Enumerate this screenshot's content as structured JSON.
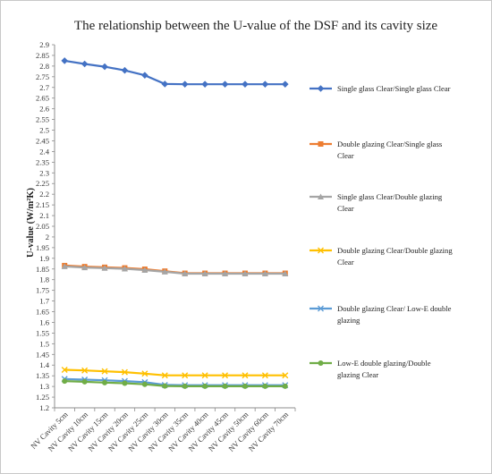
{
  "chart_data": {
    "type": "line",
    "title": "The relationship between the U-value of the DSF and its cavity size",
    "xlabel": "",
    "ylabel": "U-value (W/m²K)",
    "ylim": [
      1.2,
      2.9
    ],
    "ytick_step": 0.05,
    "grid": false,
    "legend_position": "right",
    "categories": [
      "NV Cavity 5cm",
      "NV Cavity 10cm",
      "NV Cavity 15cm",
      "NV Cavity 20cm",
      "NV Cavity 25cm",
      "NV Cavity 30cm",
      "NV Cavity 35cm",
      "NV Cavity 40cm",
      "NV Cavity 45cm",
      "NV Cavity 50cm",
      "NV Cavity 60cm",
      "NV Cavity 70cm"
    ],
    "series": [
      {
        "name": "Single glass Clear/Single glass Clear",
        "legend_lines": [
          "Single glass Clear/Single glass Clear"
        ],
        "color": "#4472C4",
        "marker": "diamond",
        "values": [
          2.825,
          2.81,
          2.797,
          2.78,
          2.757,
          2.716,
          2.715,
          2.715,
          2.715,
          2.715,
          2.715,
          2.715
        ]
      },
      {
        "name": "Double glazing Clear/Single glass Clear",
        "legend_lines": [
          "Double glazing Clear/Single glass",
          "Clear"
        ],
        "color": "#ED7D31",
        "marker": "square",
        "values": [
          1.866,
          1.861,
          1.858,
          1.855,
          1.849,
          1.84,
          1.83,
          1.83,
          1.83,
          1.83,
          1.83,
          1.83
        ]
      },
      {
        "name": "Single glass Clear/Double glazing Clear",
        "legend_lines": [
          "Single glass Clear/Double glazing",
          "Clear"
        ],
        "color": "#A5A5A5",
        "marker": "triangle",
        "values": [
          1.862,
          1.857,
          1.854,
          1.851,
          1.845,
          1.837,
          1.828,
          1.828,
          1.828,
          1.828,
          1.828,
          1.828
        ]
      },
      {
        "name": "Double glazing Clear/Double glazing Clear",
        "legend_lines": [
          "Double glazing Clear/Double glazing",
          "Clear"
        ],
        "color": "#FFC000",
        "marker": "x",
        "values": [
          1.378,
          1.375,
          1.371,
          1.367,
          1.36,
          1.352,
          1.352,
          1.352,
          1.352,
          1.352,
          1.352,
          1.352
        ]
      },
      {
        "name": "Double glazing Clear/ Low-E double glazing",
        "legend_lines": [
          "Double glazing Clear/ Low-E double",
          "glazing"
        ],
        "color": "#5B9BD5",
        "marker": "x",
        "values": [
          1.335,
          1.332,
          1.329,
          1.325,
          1.32,
          1.307,
          1.306,
          1.306,
          1.306,
          1.306,
          1.306,
          1.306
        ]
      },
      {
        "name": "Low-E double glazing/Double glazing Clear",
        "legend_lines": [
          "Low-E double glazing/Double",
          "glazing Clear"
        ],
        "color": "#70AD47",
        "marker": "circle",
        "values": [
          1.325,
          1.322,
          1.318,
          1.315,
          1.31,
          1.302,
          1.301,
          1.301,
          1.301,
          1.301,
          1.301,
          1.301
        ]
      }
    ]
  }
}
